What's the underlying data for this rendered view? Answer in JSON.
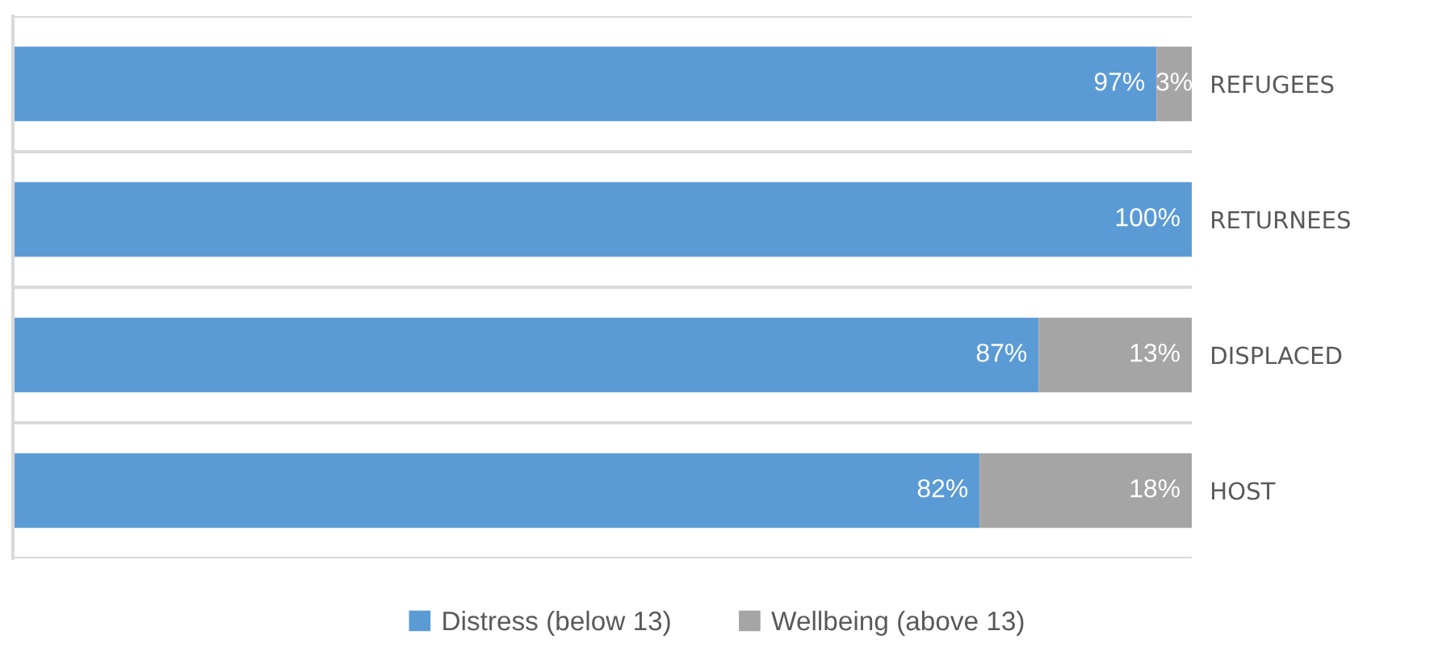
{
  "chart_data": {
    "type": "bar",
    "orientation": "horizontal",
    "stacked": true,
    "categories": [
      "REFUGEES",
      "RETURNEES",
      "DISPLACED",
      "HOST"
    ],
    "series": [
      {
        "name": "Distress (below 13)",
        "color": "#5b9bd5",
        "values": [
          97,
          100,
          87,
          82
        ],
        "value_labels": [
          "97%",
          "100%",
          "87%",
          "82%"
        ]
      },
      {
        "name": "Wellbeing (above 13)",
        "color": "#a5a5a5",
        "values": [
          3,
          0,
          13,
          18
        ],
        "value_labels": [
          "3%",
          null,
          "13%",
          "18%"
        ]
      }
    ],
    "xlim": [
      0,
      100
    ],
    "grid": "y",
    "legend": "bottom",
    "tick_labels": "y"
  }
}
